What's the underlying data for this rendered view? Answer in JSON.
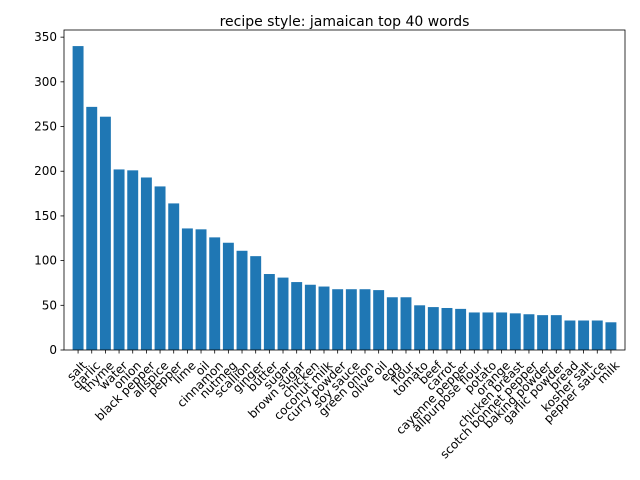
{
  "chart_data": {
    "type": "bar",
    "title": "recipe style: jamaican top 40 words",
    "xlabel": "",
    "ylabel": "",
    "ylim": [
      0,
      358
    ],
    "yticks": [
      0,
      50,
      100,
      150,
      200,
      250,
      300,
      350
    ],
    "bar_color": "#1f77b4",
    "grid": false,
    "categories": [
      "salt",
      "garlic",
      "thyme",
      "water",
      "onion",
      "black pepper",
      "allspice",
      "pepper",
      "lime",
      "oil",
      "cinnamon",
      "nutmeg",
      "scallion",
      "ginger",
      "butter",
      "sugar",
      "brown sugar",
      "chicken",
      "coconut milk",
      "curry powder",
      "soy sauce",
      "green onion",
      "olive oil",
      "egg",
      "flour",
      "tomato",
      "beef",
      "carrot",
      "cayenne pepper",
      "allpurpose flour",
      "potato",
      "orange",
      "chicken breast",
      "scotch bonnet pepper",
      "baking powder",
      "garlic powder",
      "bread",
      "kosher salt",
      "pepper sauce",
      "milk"
    ],
    "values": [
      340,
      272,
      261,
      202,
      201,
      193,
      183,
      164,
      136,
      135,
      126,
      120,
      111,
      105,
      85,
      81,
      76,
      73,
      71,
      68,
      68,
      68,
      67,
      59,
      59,
      50,
      48,
      47,
      46,
      42,
      42,
      42,
      41,
      40,
      39,
      39,
      33,
      33,
      33,
      31
    ]
  }
}
